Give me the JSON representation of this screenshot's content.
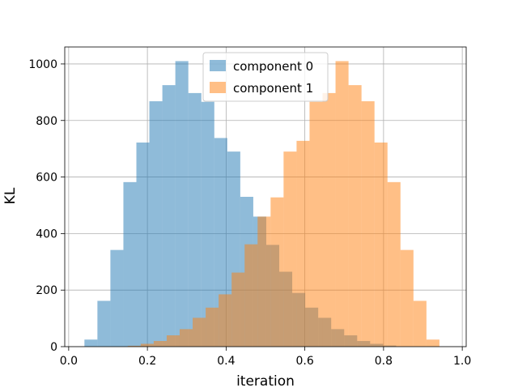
{
  "chart_data": {
    "type": "histogram",
    "title": "",
    "xlabel": "iteration",
    "ylabel": "KL",
    "xlim": [
      -0.01,
      1.01
    ],
    "ylim": [
      0,
      1060
    ],
    "grid": true,
    "legend_placement": "top-center",
    "x_ticks": [
      0.0,
      0.2,
      0.4,
      0.6,
      0.8,
      1.0
    ],
    "x_tick_labels": [
      "0.0",
      "0.2",
      "0.4",
      "0.6",
      "0.8",
      "1.0"
    ],
    "y_ticks": [
      0,
      200,
      400,
      600,
      800,
      1000
    ],
    "y_tick_labels": [
      "0",
      "200",
      "400",
      "600",
      "800",
      "1000"
    ],
    "series": [
      {
        "name": "component 0",
        "color": "#1f77b4",
        "opacity": 0.5,
        "bins": [
          [
            0.04,
            0.073,
            25
          ],
          [
            0.073,
            0.106,
            162
          ],
          [
            0.106,
            0.139,
            342
          ],
          [
            0.139,
            0.172,
            582
          ],
          [
            0.172,
            0.205,
            722
          ],
          [
            0.205,
            0.238,
            868
          ],
          [
            0.238,
            0.271,
            925
          ],
          [
            0.271,
            0.304,
            1010
          ],
          [
            0.304,
            0.337,
            897
          ],
          [
            0.337,
            0.37,
            866
          ],
          [
            0.37,
            0.403,
            738
          ],
          [
            0.403,
            0.436,
            690
          ],
          [
            0.436,
            0.469,
            530
          ],
          [
            0.469,
            0.502,
            460
          ],
          [
            0.502,
            0.535,
            360
          ],
          [
            0.535,
            0.568,
            265
          ],
          [
            0.568,
            0.601,
            190
          ],
          [
            0.601,
            0.634,
            138
          ],
          [
            0.634,
            0.667,
            102
          ],
          [
            0.667,
            0.7,
            62
          ],
          [
            0.7,
            0.733,
            40
          ],
          [
            0.733,
            0.766,
            20
          ],
          [
            0.766,
            0.799,
            10
          ],
          [
            0.799,
            0.832,
            4
          ],
          [
            0.832,
            0.865,
            1
          ]
        ]
      },
      {
        "name": "component 1",
        "color": "#ff7f0e",
        "opacity": 0.5,
        "bins": [
          [
            0.15,
            0.183,
            3
          ],
          [
            0.183,
            0.216,
            10
          ],
          [
            0.216,
            0.249,
            20
          ],
          [
            0.249,
            0.282,
            40
          ],
          [
            0.282,
            0.315,
            62
          ],
          [
            0.315,
            0.348,
            102
          ],
          [
            0.348,
            0.381,
            138
          ],
          [
            0.381,
            0.414,
            185
          ],
          [
            0.414,
            0.447,
            262
          ],
          [
            0.447,
            0.48,
            362
          ],
          [
            0.48,
            0.513,
            460
          ],
          [
            0.513,
            0.546,
            528
          ],
          [
            0.546,
            0.579,
            690
          ],
          [
            0.579,
            0.612,
            728
          ],
          [
            0.612,
            0.645,
            866
          ],
          [
            0.645,
            0.678,
            897
          ],
          [
            0.678,
            0.711,
            1010
          ],
          [
            0.711,
            0.744,
            925
          ],
          [
            0.744,
            0.777,
            868
          ],
          [
            0.777,
            0.81,
            722
          ],
          [
            0.81,
            0.843,
            582
          ],
          [
            0.843,
            0.876,
            342
          ],
          [
            0.876,
            0.909,
            162
          ],
          [
            0.909,
            0.942,
            25
          ]
        ]
      }
    ]
  }
}
